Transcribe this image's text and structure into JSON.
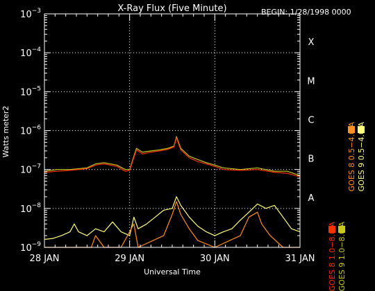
{
  "chart_data": {
    "type": "line",
    "title": "X-Ray Flux (Five Minute)",
    "begin_label": "BEGIN: 1/28/1998 0000",
    "ylabel": "Watts meter2",
    "xlabel": "Universal Time",
    "x_domain_days": [
      0,
      3
    ],
    "log_scale": true,
    "ylim": [
      1e-09,
      0.001
    ],
    "grid": true,
    "x_ticks": [
      {
        "day": 0,
        "label": "28 JAN"
      },
      {
        "day": 1,
        "label": "29 JAN"
      },
      {
        "day": 2,
        "label": "30 JAN"
      },
      {
        "day": 3,
        "label": "31 JAN"
      }
    ],
    "y_ticks": [
      {
        "exp": -9,
        "base": "10",
        "sup": "−9"
      },
      {
        "exp": -8,
        "base": "10",
        "sup": "−8"
      },
      {
        "exp": -7,
        "base": "10",
        "sup": "−7"
      },
      {
        "exp": -6,
        "base": "10",
        "sup": "−6"
      },
      {
        "exp": -5,
        "base": "10",
        "sup": "−5"
      },
      {
        "exp": -4,
        "base": "10",
        "sup": "−4"
      },
      {
        "exp": -3,
        "base": "10",
        "sup": "−3"
      }
    ],
    "flare_classes": [
      {
        "label": "A",
        "exp": -8
      },
      {
        "label": "B",
        "exp": -7
      },
      {
        "label": "C",
        "exp": -6
      },
      {
        "label": "M",
        "exp": -5
      },
      {
        "label": "X",
        "exp": -4
      }
    ],
    "series": [
      {
        "name": "GOES 9 1.0−8.0 A",
        "color": "#c8c81e",
        "points": [
          [
            0.0,
            9e-08
          ],
          [
            0.15,
            1e-07
          ],
          [
            0.3,
            1e-07
          ],
          [
            0.5,
            1.1e-07
          ],
          [
            0.6,
            1.4e-07
          ],
          [
            0.7,
            1.5e-07
          ],
          [
            0.85,
            1.3e-07
          ],
          [
            0.95,
            1e-07
          ],
          [
            1.0,
            1e-07
          ],
          [
            1.03,
            1.6e-07
          ],
          [
            1.08,
            3.5e-07
          ],
          [
            1.15,
            2.8e-07
          ],
          [
            1.25,
            3e-07
          ],
          [
            1.35,
            3.2e-07
          ],
          [
            1.45,
            3.5e-07
          ],
          [
            1.52,
            4e-07
          ],
          [
            1.55,
            7e-07
          ],
          [
            1.6,
            3.5e-07
          ],
          [
            1.7,
            2.2e-07
          ],
          [
            1.8,
            1.8e-07
          ],
          [
            1.9,
            1.5e-07
          ],
          [
            2.0,
            1.3e-07
          ],
          [
            2.1,
            1.1e-07
          ],
          [
            2.3,
            1e-07
          ],
          [
            2.5,
            1.1e-07
          ],
          [
            2.7,
            9e-08
          ],
          [
            2.85,
            9e-08
          ],
          [
            3.0,
            7e-08
          ]
        ]
      },
      {
        "name": "GOES 9 0.5−4.0 A",
        "color": "#ffff80",
        "points": [
          [
            0.0,
            1.6e-09
          ],
          [
            0.1,
            1.7e-09
          ],
          [
            0.2,
            2e-09
          ],
          [
            0.3,
            2.5e-09
          ],
          [
            0.35,
            4e-09
          ],
          [
            0.4,
            2.5e-09
          ],
          [
            0.5,
            2e-09
          ],
          [
            0.6,
            3e-09
          ],
          [
            0.7,
            2.5e-09
          ],
          [
            0.8,
            4.5e-09
          ],
          [
            0.9,
            2.5e-09
          ],
          [
            1.0,
            2e-09
          ],
          [
            1.05,
            6e-09
          ],
          [
            1.1,
            3e-09
          ],
          [
            1.2,
            4e-09
          ],
          [
            1.3,
            6e-09
          ],
          [
            1.4,
            9e-09
          ],
          [
            1.5,
            1e-08
          ],
          [
            1.55,
            2e-08
          ],
          [
            1.6,
            1.2e-08
          ],
          [
            1.7,
            6e-09
          ],
          [
            1.8,
            3.5e-09
          ],
          [
            1.9,
            2.5e-09
          ],
          [
            2.0,
            2e-09
          ],
          [
            2.1,
            2.5e-09
          ],
          [
            2.2,
            3e-09
          ],
          [
            2.3,
            5e-09
          ],
          [
            2.4,
            8e-09
          ],
          [
            2.5,
            1.3e-08
          ],
          [
            2.6,
            1e-08
          ],
          [
            2.7,
            1.2e-08
          ],
          [
            2.8,
            6e-09
          ],
          [
            2.9,
            3e-09
          ],
          [
            3.0,
            2.5e-09
          ]
        ]
      },
      {
        "name": "GOES 8 1.0−8.0 A",
        "color": "#ff3000",
        "points": [
          [
            0.0,
            8.5e-08
          ],
          [
            0.15,
            9e-08
          ],
          [
            0.3,
            9.5e-08
          ],
          [
            0.5,
            1.05e-07
          ],
          [
            0.6,
            1.3e-07
          ],
          [
            0.7,
            1.4e-07
          ],
          [
            0.85,
            1.2e-07
          ],
          [
            0.95,
            9e-08
          ],
          [
            1.0,
            9.5e-08
          ],
          [
            1.03,
            1.5e-07
          ],
          [
            1.08,
            3.2e-07
          ],
          [
            1.15,
            2.5e-07
          ],
          [
            1.25,
            2.8e-07
          ],
          [
            1.35,
            3e-07
          ],
          [
            1.45,
            3.3e-07
          ],
          [
            1.52,
            3.8e-07
          ],
          [
            1.55,
            6.5e-07
          ],
          [
            1.6,
            3.2e-07
          ],
          [
            1.7,
            2e-07
          ],
          [
            1.8,
            1.6e-07
          ],
          [
            1.9,
            1.4e-07
          ],
          [
            2.0,
            1.2e-07
          ],
          [
            2.1,
            1e-07
          ],
          [
            2.3,
            9.5e-08
          ],
          [
            2.5,
            1e-07
          ],
          [
            2.7,
            8.5e-08
          ],
          [
            2.85,
            8e-08
          ],
          [
            3.0,
            6.5e-08
          ]
        ]
      },
      {
        "name": "GOES 8 0.5−4.0 A",
        "color": "#ff9020",
        "points": [
          [
            0.0,
            1e-09
          ],
          [
            0.55,
            1e-09
          ],
          [
            0.6,
            2e-09
          ],
          [
            0.7,
            1e-09
          ],
          [
            0.9,
            1e-09
          ],
          [
            1.05,
            4e-09
          ],
          [
            1.1,
            1e-09
          ],
          [
            1.4,
            2e-09
          ],
          [
            1.5,
            7e-09
          ],
          [
            1.55,
            1.5e-08
          ],
          [
            1.6,
            7e-09
          ],
          [
            1.7,
            3e-09
          ],
          [
            1.8,
            1.5e-09
          ],
          [
            2.0,
            1e-09
          ],
          [
            2.3,
            2e-09
          ],
          [
            2.4,
            6e-09
          ],
          [
            2.5,
            8e-09
          ],
          [
            2.55,
            4e-09
          ],
          [
            2.65,
            2e-09
          ],
          [
            2.8,
            1e-09
          ],
          [
            3.0,
            1e-09
          ]
        ]
      }
    ]
  }
}
